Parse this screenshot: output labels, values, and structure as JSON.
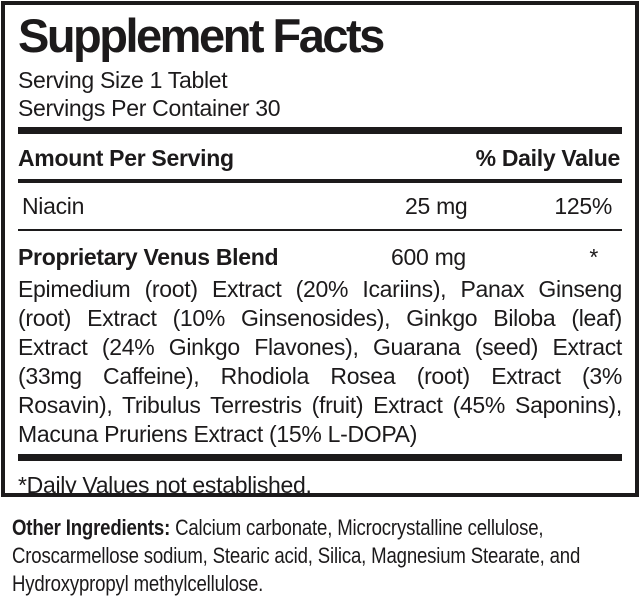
{
  "panel": {
    "title": "Supplement Facts",
    "serving_size": "Serving Size 1 Tablet",
    "servings_per_container": "Servings Per Container 30"
  },
  "table": {
    "amount_per_serving_header": "Amount Per Serving",
    "daily_value_header": "% Daily Value",
    "rows": [
      {
        "name": "Niacin",
        "amount": "25 mg",
        "daily_value": "125%"
      }
    ],
    "blend": {
      "name": "Proprietary Venus Blend",
      "amount": "600 mg",
      "daily_value": "*",
      "ingredients": "Epimedium (root) Extract (20% Icariins), Panax Ginseng (root) Extract (10% Ginsenosides), Ginkgo Biloba (leaf) Extract (24% Ginkgo Flavones), Guarana (seed) Extract (33mg Caffeine), Rhodiola Rosea (root) Extract (3% Rosavin), Tribulus Terrestris (fruit) Extract (45% Saponins), Macuna Pruriens Extract (15% L-DOPA)"
    },
    "footnote": "*Daily Values not established."
  },
  "other_ingredients": {
    "label": "Other Ingredients:",
    "text": " Calcium carbonate, Microcrystalline cellulose, Croscarmellose sodium, Stearic acid, Silica, Magnesium Stearate, and Hydroxypropyl methylcellulose."
  },
  "colors": {
    "ink": "#1c1a1b",
    "background": "#ffffff"
  }
}
